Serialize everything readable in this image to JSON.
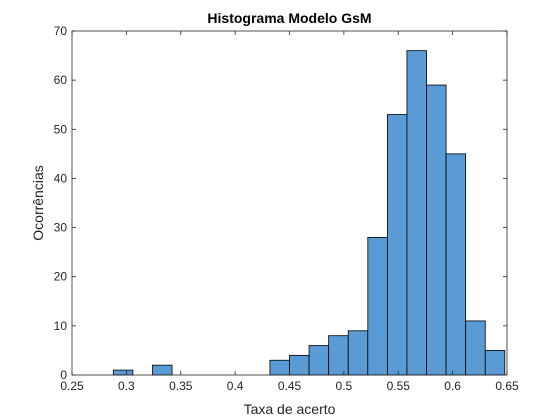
{
  "chart_data": {
    "type": "bar",
    "title": "Histograma Modelo GsM",
    "xlabel": "Taxa de acerto",
    "ylabel": "Ocorrências",
    "xlim": [
      0.25,
      0.65
    ],
    "ylim": [
      0,
      70
    ],
    "x_ticks": [
      "0.25",
      "0.3",
      "0.35",
      "0.4",
      "0.45",
      "0.5",
      "0.55",
      "0.6",
      "0.65"
    ],
    "y_ticks": [
      "0",
      "10",
      "20",
      "30",
      "40",
      "50",
      "60",
      "70"
    ],
    "bin_width": 0.018,
    "bins": [
      {
        "start": 0.288,
        "value": 1
      },
      {
        "start": 0.324,
        "value": 2
      },
      {
        "start": 0.432,
        "value": 3
      },
      {
        "start": 0.45,
        "value": 4
      },
      {
        "start": 0.468,
        "value": 6
      },
      {
        "start": 0.486,
        "value": 8
      },
      {
        "start": 0.504,
        "value": 9
      },
      {
        "start": 0.522,
        "value": 28
      },
      {
        "start": 0.54,
        "value": 53
      },
      {
        "start": 0.558,
        "value": 66
      },
      {
        "start": 0.576,
        "value": 59
      },
      {
        "start": 0.594,
        "value": 45
      },
      {
        "start": 0.612,
        "value": 11
      },
      {
        "start": 0.63,
        "value": 5
      }
    ],
    "grid": false,
    "colors": {
      "bar_fill": "#5b9bd5",
      "bar_edge": "#000000",
      "axis": "#262626"
    }
  }
}
